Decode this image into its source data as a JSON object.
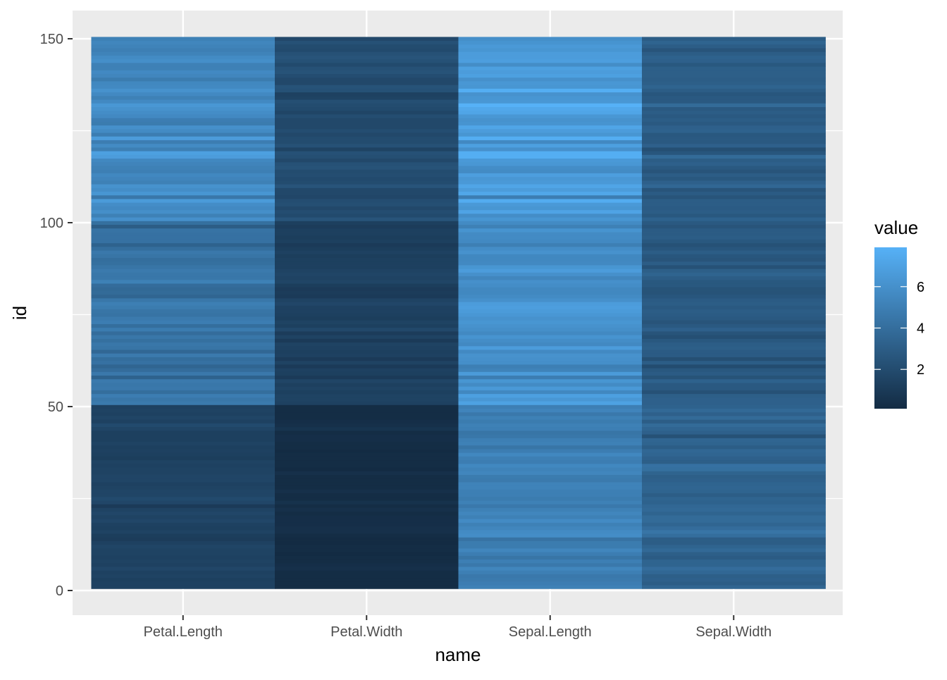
{
  "chart_data": {
    "type": "heatmap",
    "xlabel": "name",
    "ylabel": "id",
    "x_categories": [
      "Petal.Length",
      "Petal.Width",
      "Sepal.Length",
      "Sepal.Width"
    ],
    "y_range": [
      1,
      150
    ],
    "y_ticks": [
      0,
      50,
      100,
      150
    ],
    "value_legend": {
      "title": "value",
      "ticks": [
        2,
        4,
        6
      ],
      "range": [
        0.1,
        7.9
      ],
      "low_color": "#132B43",
      "high_color": "#56B1F7",
      "position": "right"
    },
    "grid": true,
    "series": [
      {
        "name": "Sepal.Length",
        "values": [
          5.1,
          4.9,
          4.7,
          4.6,
          5.0,
          5.4,
          4.6,
          5.0,
          4.4,
          4.9,
          5.4,
          4.8,
          4.8,
          4.3,
          5.8,
          5.7,
          5.4,
          5.1,
          5.7,
          5.1,
          5.4,
          5.1,
          4.6,
          5.1,
          4.8,
          5.0,
          5.0,
          5.2,
          5.2,
          4.7,
          4.8,
          5.4,
          5.2,
          5.5,
          4.9,
          5.0,
          5.5,
          4.9,
          4.4,
          5.1,
          5.0,
          4.5,
          4.4,
          5.0,
          5.1,
          4.8,
          5.1,
          4.6,
          5.3,
          5.0,
          7.0,
          6.4,
          6.9,
          5.5,
          6.5,
          5.7,
          6.3,
          4.9,
          6.6,
          5.2,
          5.0,
          5.9,
          6.0,
          6.1,
          5.6,
          6.7,
          5.6,
          5.8,
          6.2,
          5.6,
          5.9,
          6.1,
          6.3,
          6.1,
          6.4,
          6.6,
          6.8,
          6.7,
          6.0,
          5.7,
          5.5,
          5.5,
          5.8,
          6.0,
          5.4,
          6.0,
          6.7,
          6.3,
          5.6,
          5.5,
          5.5,
          6.1,
          5.8,
          5.0,
          5.6,
          5.7,
          5.7,
          6.2,
          5.1,
          5.7,
          6.3,
          5.8,
          7.1,
          6.3,
          6.5,
          7.6,
          4.9,
          7.3,
          6.7,
          7.2,
          6.5,
          6.4,
          6.8,
          5.7,
          5.8,
          6.4,
          6.5,
          7.7,
          7.7,
          6.0,
          6.9,
          5.6,
          7.7,
          6.3,
          6.7,
          7.2,
          6.2,
          6.1,
          6.4,
          7.2,
          7.4,
          7.9,
          6.4,
          6.3,
          6.1,
          7.7,
          6.3,
          6.4,
          6.0,
          6.9,
          6.7,
          6.9,
          5.8,
          6.8,
          6.7,
          6.7,
          6.3,
          6.5,
          6.2,
          5.9
        ]
      },
      {
        "name": "Sepal.Width",
        "values": [
          3.5,
          3.0,
          3.2,
          3.1,
          3.6,
          3.9,
          3.4,
          3.4,
          2.9,
          3.1,
          3.7,
          3.4,
          3.0,
          3.0,
          4.0,
          4.4,
          3.9,
          3.5,
          3.8,
          3.8,
          3.4,
          3.7,
          3.6,
          3.3,
          3.4,
          3.0,
          3.4,
          3.5,
          3.4,
          3.2,
          3.1,
          3.4,
          4.1,
          4.2,
          3.1,
          3.2,
          3.5,
          3.6,
          3.0,
          3.4,
          3.5,
          2.3,
          3.2,
          3.5,
          3.8,
          3.0,
          3.8,
          3.2,
          3.7,
          3.3,
          3.2,
          3.2,
          3.1,
          2.3,
          2.8,
          2.8,
          3.3,
          2.4,
          2.9,
          2.7,
          2.0,
          3.0,
          2.2,
          2.9,
          2.9,
          3.1,
          3.0,
          2.7,
          2.2,
          2.5,
          3.2,
          2.8,
          2.5,
          2.8,
          2.9,
          3.0,
          2.8,
          3.0,
          2.9,
          2.6,
          2.4,
          2.4,
          2.7,
          2.7,
          3.0,
          3.4,
          3.1,
          2.3,
          3.0,
          2.5,
          2.6,
          3.0,
          2.6,
          2.3,
          2.7,
          3.0,
          2.9,
          2.9,
          2.5,
          2.8,
          3.3,
          2.7,
          3.0,
          2.9,
          3.0,
          3.0,
          2.5,
          2.9,
          2.5,
          3.6,
          3.2,
          2.7,
          3.0,
          2.5,
          2.8,
          3.2,
          3.0,
          3.8,
          2.6,
          2.2,
          3.2,
          2.8,
          2.8,
          2.7,
          3.3,
          3.2,
          2.8,
          3.0,
          2.8,
          3.0,
          2.8,
          3.8,
          2.8,
          2.8,
          2.6,
          3.0,
          3.4,
          3.1,
          3.0,
          3.1,
          3.1,
          3.1,
          2.7,
          3.2,
          3.3,
          3.0,
          2.5,
          3.0,
          3.4,
          3.0
        ]
      },
      {
        "name": "Petal.Length",
        "values": [
          1.4,
          1.4,
          1.3,
          1.5,
          1.4,
          1.7,
          1.4,
          1.5,
          1.4,
          1.5,
          1.5,
          1.6,
          1.4,
          1.1,
          1.2,
          1.5,
          1.3,
          1.4,
          1.7,
          1.5,
          1.7,
          1.5,
          1.0,
          1.7,
          1.9,
          1.6,
          1.6,
          1.5,
          1.4,
          1.6,
          1.6,
          1.5,
          1.5,
          1.4,
          1.5,
          1.2,
          1.3,
          1.4,
          1.3,
          1.5,
          1.3,
          1.3,
          1.3,
          1.6,
          1.9,
          1.4,
          1.6,
          1.4,
          1.5,
          1.4,
          4.7,
          4.5,
          4.9,
          4.0,
          4.6,
          4.5,
          4.7,
          3.3,
          4.6,
          3.9,
          3.5,
          4.2,
          4.0,
          4.7,
          3.6,
          4.4,
          4.5,
          4.1,
          4.5,
          3.9,
          4.8,
          4.0,
          4.9,
          4.7,
          4.3,
          4.4,
          4.8,
          5.0,
          4.5,
          3.5,
          3.8,
          3.7,
          3.9,
          5.1,
          4.5,
          4.5,
          4.7,
          4.4,
          4.1,
          4.0,
          4.4,
          4.6,
          4.0,
          3.3,
          4.2,
          4.2,
          4.2,
          4.3,
          3.0,
          4.1,
          6.0,
          5.1,
          5.9,
          5.6,
          5.8,
          6.6,
          4.5,
          6.3,
          5.8,
          6.1,
          5.1,
          5.3,
          5.5,
          5.0,
          5.1,
          5.3,
          5.5,
          6.7,
          6.9,
          5.0,
          5.7,
          4.9,
          6.7,
          4.9,
          5.7,
          6.0,
          4.8,
          4.9,
          5.6,
          5.8,
          6.1,
          6.4,
          5.6,
          5.1,
          5.6,
          6.1,
          5.6,
          5.5,
          4.8,
          5.4,
          5.6,
          5.1,
          5.1,
          5.9,
          5.7,
          5.2,
          5.0,
          5.2,
          5.4,
          5.1
        ]
      },
      {
        "name": "Petal.Width",
        "values": [
          0.2,
          0.2,
          0.2,
          0.2,
          0.2,
          0.4,
          0.3,
          0.2,
          0.2,
          0.1,
          0.2,
          0.2,
          0.1,
          0.1,
          0.2,
          0.4,
          0.4,
          0.3,
          0.3,
          0.3,
          0.2,
          0.4,
          0.2,
          0.5,
          0.2,
          0.2,
          0.4,
          0.2,
          0.2,
          0.2,
          0.2,
          0.4,
          0.1,
          0.2,
          0.2,
          0.2,
          0.2,
          0.1,
          0.2,
          0.2,
          0.3,
          0.3,
          0.2,
          0.6,
          0.4,
          0.3,
          0.2,
          0.2,
          0.2,
          0.2,
          1.4,
          1.5,
          1.5,
          1.3,
          1.5,
          1.3,
          1.6,
          1.0,
          1.3,
          1.4,
          1.0,
          1.5,
          1.0,
          1.4,
          1.3,
          1.4,
          1.5,
          1.0,
          1.5,
          1.1,
          1.8,
          1.3,
          1.5,
          1.2,
          1.3,
          1.4,
          1.4,
          1.7,
          1.5,
          1.0,
          1.1,
          1.0,
          1.2,
          1.6,
          1.5,
          1.6,
          1.5,
          1.3,
          1.3,
          1.3,
          1.2,
          1.4,
          1.2,
          1.0,
          1.3,
          1.2,
          1.3,
          1.3,
          1.1,
          1.3,
          2.5,
          1.9,
          2.1,
          1.8,
          2.2,
          2.1,
          1.7,
          1.8,
          1.8,
          2.5,
          2.0,
          1.9,
          2.1,
          2.0,
          2.4,
          2.3,
          1.8,
          2.2,
          2.3,
          1.5,
          2.3,
          2.0,
          2.0,
          1.8,
          2.1,
          1.8,
          1.8,
          1.8,
          2.1,
          1.6,
          1.9,
          2.0,
          2.2,
          1.5,
          1.4,
          2.3,
          2.4,
          1.8,
          1.8,
          2.1,
          2.4,
          2.3,
          1.9,
          2.3,
          2.5,
          2.3,
          1.9,
          2.0,
          2.3,
          1.8
        ]
      }
    ]
  }
}
